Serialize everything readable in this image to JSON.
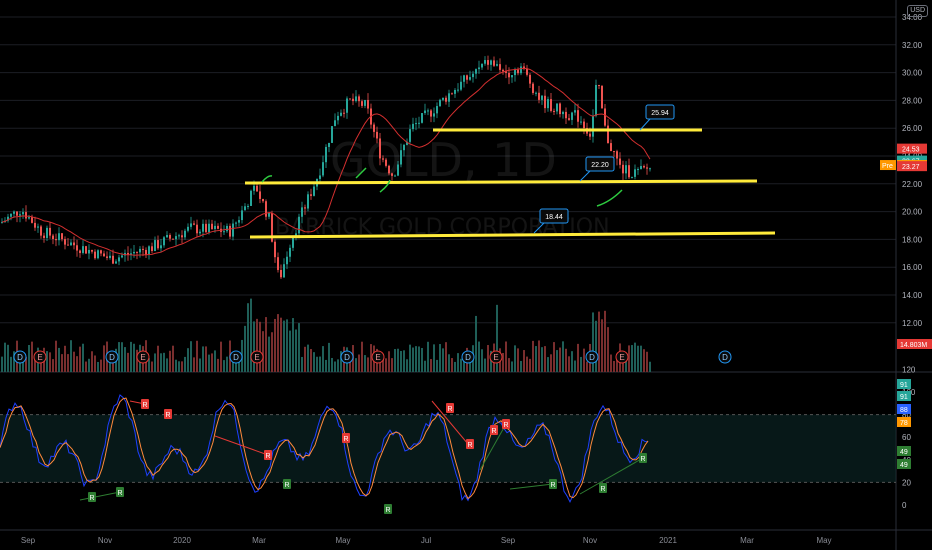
{
  "header": {
    "currency": "USD"
  },
  "watermark": {
    "symbol": "GOLD, 1D",
    "name": "BARRICK GOLD CORPORATION"
  },
  "price_axis": {
    "ticks": [
      "34.00",
      "32.00",
      "30.00",
      "28.00",
      "26.00",
      "24.00",
      "22.00",
      "20.00",
      "18.00",
      "16.00",
      "14.00",
      "12.00"
    ]
  },
  "price_tags": [
    {
      "label": "24.53",
      "value": 24.53,
      "color": "#e53935"
    },
    {
      "label": "23.67",
      "value": 23.67,
      "color": "#26a69a"
    },
    {
      "label": "23.35",
      "prefix": "Pre",
      "value": 23.35,
      "color": "#ff9800"
    },
    {
      "label": "23.27",
      "value": 23.27,
      "color": "#e53935"
    }
  ],
  "volume_tag": {
    "label": "14.803M",
    "color": "#e53935"
  },
  "callouts": [
    {
      "label": "25.94"
    },
    {
      "label": "22.20"
    },
    {
      "label": "18.44"
    }
  ],
  "events": [
    "D",
    "E",
    "D",
    "E",
    "D",
    "E",
    "D",
    "E",
    "D",
    "E",
    "D",
    "E",
    "D",
    "E",
    "D",
    "E"
  ],
  "osc_axis": {
    "ticks": [
      "120",
      "100",
      "80",
      "60",
      "40",
      "20",
      "0"
    ]
  },
  "osc_tags": [
    {
      "label": "91",
      "color": "#26a69a"
    },
    {
      "label": "91",
      "color": "#26a69a"
    },
    {
      "label": "88",
      "color": "#2962ff"
    },
    {
      "label": "78",
      "color": "#ff9800"
    },
    {
      "label": "49",
      "color": "#2e7d32"
    },
    {
      "label": "49",
      "color": "#2e7d32"
    }
  ],
  "osc_signals": [
    "R",
    "R",
    "R",
    "R",
    "R",
    "R",
    "R",
    "R",
    "R",
    "R",
    "R",
    "R",
    "R",
    "R",
    "R"
  ],
  "time_axis": [
    "Sep",
    "Nov",
    "2020",
    "Mar",
    "May",
    "Jul",
    "Sep",
    "Nov",
    "2021",
    "Mar",
    "May"
  ],
  "colors": {
    "up": "#26a69a",
    "down": "#ef5350",
    "ma": "#d32f2f",
    "level": "#ffeb3b",
    "osc_blue": "#1e40ff",
    "osc_orange": "#ff8a3d"
  }
}
